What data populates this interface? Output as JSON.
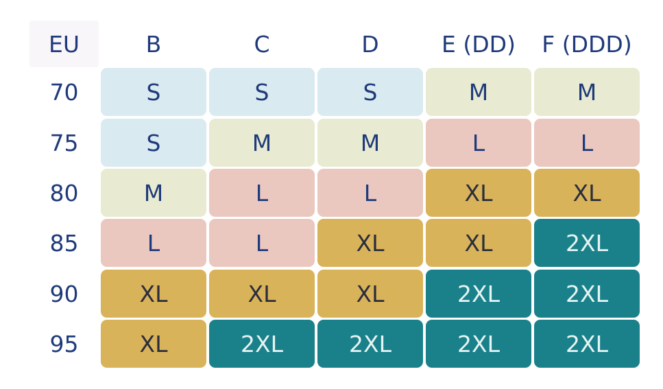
{
  "table": {
    "header": [
      "EU",
      "B",
      "C",
      "D",
      "E (DD)",
      "F (DDD)"
    ],
    "rows": [
      [
        "70",
        "S",
        "S",
        "S",
        "M",
        "M"
      ],
      [
        "75",
        "S",
        "M",
        "M",
        "L",
        "L"
      ],
      [
        "80",
        "M",
        "L",
        "L",
        "XL",
        "XL"
      ],
      [
        "85",
        "L",
        "L",
        "XL",
        "XL",
        "2XL"
      ],
      [
        "90",
        "XL",
        "XL",
        "XL",
        "2XL",
        "2XL"
      ],
      [
        "95",
        "XL",
        "2XL",
        "2XL",
        "2XL",
        "2XL"
      ]
    ],
    "size_colors": {
      "S": {
        "fill": "#d9eaf0",
        "text": "#1f3a7a"
      },
      "M": {
        "fill": "#e8ebd2",
        "text": "#1f3a7a"
      },
      "L": {
        "fill": "#eac7bf",
        "text": "#1f3a7a"
      },
      "XL": {
        "fill": "#d9b35a",
        "text": "#2b2d3c"
      },
      "2XL": {
        "fill": "#1a818a",
        "text": "#e6f4f4"
      }
    }
  }
}
